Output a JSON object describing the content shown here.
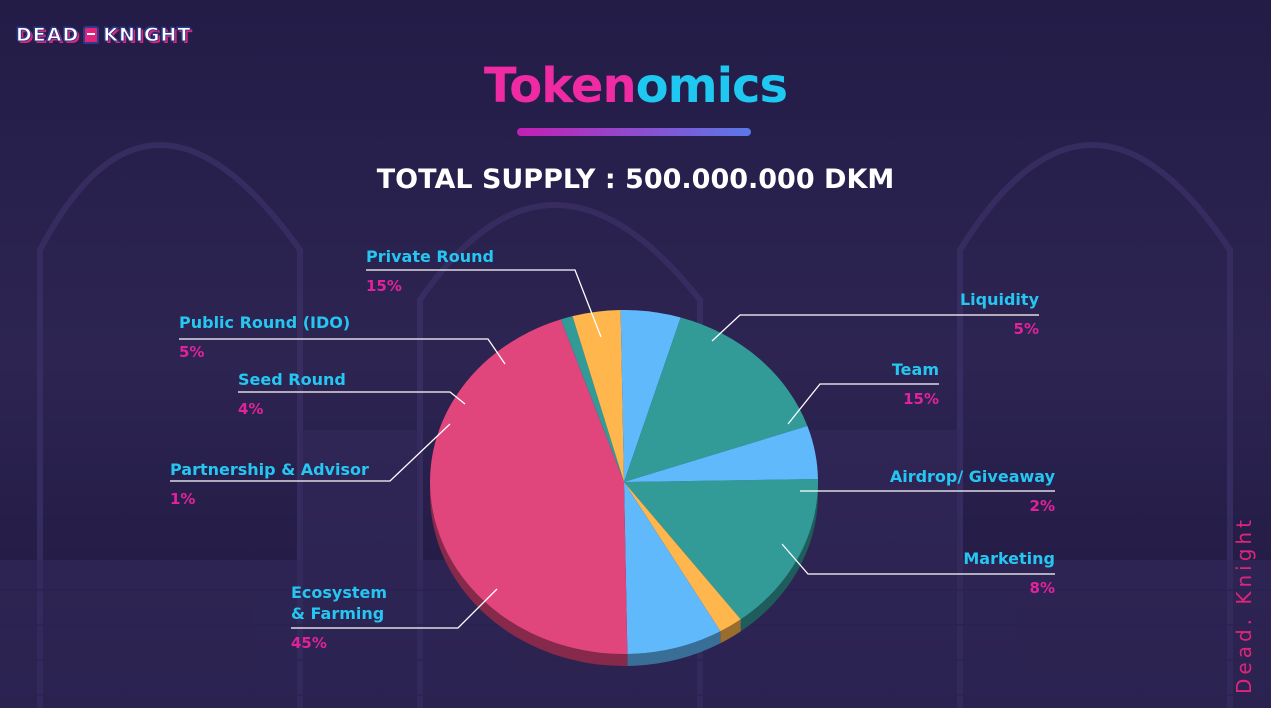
{
  "brand": {
    "logo_left": "DEAD",
    "logo_right": "KNIGHT",
    "side_text": "Dead. Knight"
  },
  "header": {
    "title_part1": "Token",
    "title_part2": "omics",
    "supply": "TOTAL SUPPLY : 500.000.000 DKM"
  },
  "colors": {
    "pink_text": "#ef2aa3",
    "cyan_text": "#1ec8f0",
    "label_text": "#26c6f2",
    "percent_text": "#e0239a",
    "teal": "#329b98",
    "light_blue": "#5fb9fb",
    "orange": "#ffb64d",
    "rose": "#e0457b",
    "background": "#2a2150"
  },
  "chart_data": {
    "type": "pie",
    "title": "Tokenomics",
    "slices": [
      {
        "label": "Team",
        "percent_label": "15%",
        "value": 15,
        "color": "#329b98"
      },
      {
        "label": "Airdrop/ Giveaway",
        "percent_label": "2%",
        "value": 2,
        "color": "#ffb64d"
      },
      {
        "label": "Marketing",
        "percent_label": "8%",
        "value": 8,
        "color": "#5fb9fb"
      },
      {
        "label": "Ecosystem & Farming",
        "label_lines": [
          "Ecosystem",
          "& Farming"
        ],
        "percent_label": "45%",
        "value": 45,
        "color": "#e0457b"
      },
      {
        "label": "Partnership &  Advisor",
        "percent_label": "1%",
        "value": 1,
        "color": "#329b98"
      },
      {
        "label": "Seed Round",
        "percent_label": "4%",
        "value": 4,
        "color": "#ffb64d"
      },
      {
        "label": "Public Round (IDO)",
        "percent_label": "5%",
        "value": 5,
        "color": "#5fb9fb"
      },
      {
        "label": "Private Round",
        "percent_label": "15%",
        "value": 15,
        "color": "#329b98"
      },
      {
        "label": "Liquidity",
        "percent_label": "5%",
        "value": 5,
        "color": "#5fb9fb"
      }
    ]
  }
}
